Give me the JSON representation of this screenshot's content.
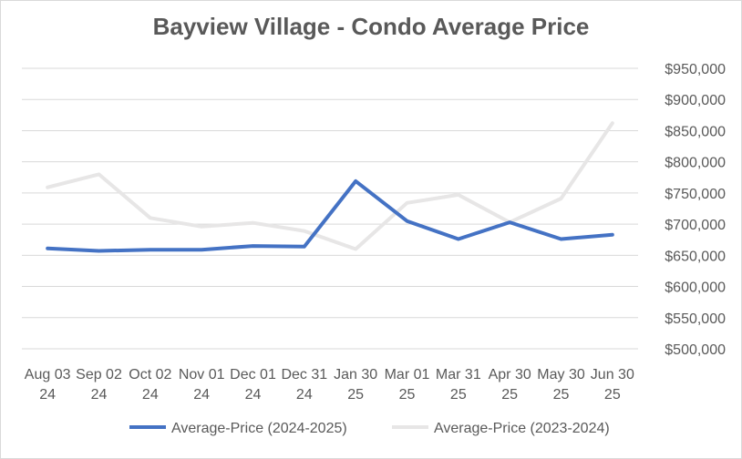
{
  "chart_data": {
    "type": "line",
    "title": "Bayview Village - Condo Average Price",
    "categories": [
      [
        "Aug 03",
        "24"
      ],
      [
        "Sep 02",
        "24"
      ],
      [
        "Oct 02",
        "24"
      ],
      [
        "Nov 01",
        "24"
      ],
      [
        "Dec 01",
        "24"
      ],
      [
        "Dec 31",
        "24"
      ],
      [
        "Jan 30",
        "25"
      ],
      [
        "Mar 01",
        "25"
      ],
      [
        "Mar 31",
        "25"
      ],
      [
        "Apr 30",
        "25"
      ],
      [
        "May 30",
        "25"
      ],
      [
        "Jun 30",
        "25"
      ]
    ],
    "series": [
      {
        "name": "Average-Price (2024-2025)",
        "color": "#4472c4",
        "values": [
          661000,
          657000,
          659000,
          659000,
          665000,
          664000,
          769000,
          705000,
          676000,
          703000,
          676000,
          683000
        ]
      },
      {
        "name": "Average-Price (2023-2024)",
        "color": "#e7e6e6",
        "values": [
          759000,
          780000,
          710000,
          696000,
          702000,
          689000,
          660000,
          734000,
          747000,
          703000,
          741000,
          862000
        ]
      }
    ],
    "y_ticks": [
      "$950,000",
      "$900,000",
      "$850,000",
      "$800,000",
      "$750,000",
      "$700,000",
      "$650,000",
      "$600,000",
      "$550,000",
      "$500,000"
    ],
    "ylim": [
      500000,
      950000
    ],
    "y_axis_side": "right",
    "grid": true,
    "legend_position": "bottom"
  }
}
